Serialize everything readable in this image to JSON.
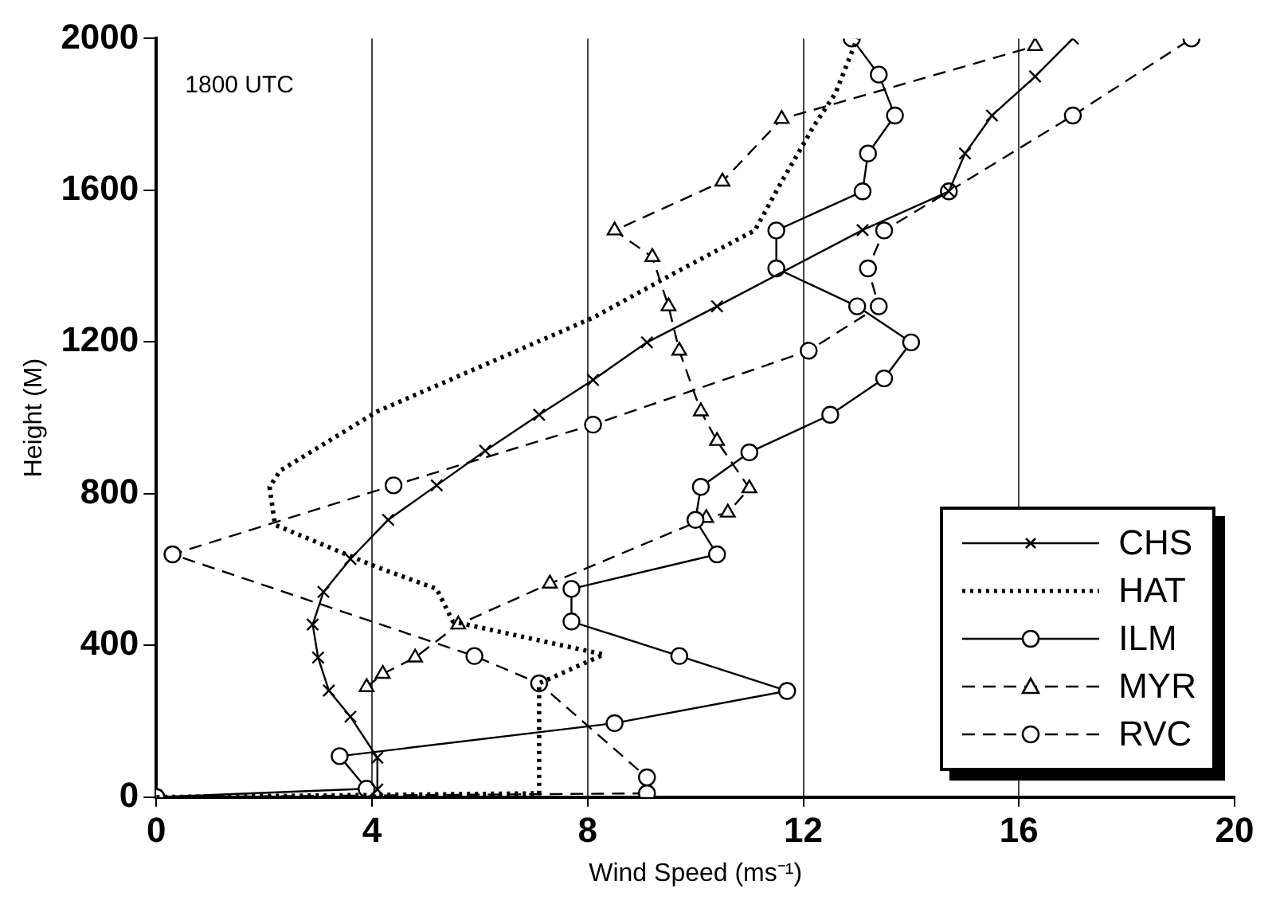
{
  "chart_data": {
    "type": "line",
    "xlabel": "Wind Speed (ms⁻¹)",
    "ylabel": "Height (M)",
    "annotations": [
      "1800 UTC"
    ],
    "xlim": [
      0,
      20
    ],
    "xticks": [
      0,
      4,
      8,
      12,
      16,
      20
    ],
    "ylim": [
      0,
      2000
    ],
    "yticks": [
      0,
      400,
      800,
      1200,
      1600,
      2000
    ],
    "grid": "x",
    "legend": "bottom right",
    "series": [
      {
        "name": "CHS",
        "color": "#000000",
        "marker": "cross",
        "line_style": "solid",
        "x": [
          4.1,
          4.1,
          3.6,
          3.2,
          3.0,
          2.9,
          3.1,
          3.6,
          4.3,
          5.2,
          6.1,
          7.1,
          8.1,
          9.1,
          10.4,
          13.1,
          14.7,
          15.0,
          15.5,
          16.3,
          17.0
        ],
        "values": [
          20,
          104,
          212,
          281,
          368,
          455,
          541,
          628,
          731,
          822,
          913,
          1008,
          1100,
          1199,
          1294,
          1495,
          1597,
          1697,
          1797,
          1900,
          2000
        ]
      },
      {
        "name": "HAT",
        "color": "#000000",
        "marker": "none",
        "line_style": "dotted",
        "x": [
          0,
          7.1,
          7.1,
          8.3,
          5.5,
          5.2,
          4.1,
          2.2,
          2.1,
          2.3,
          4.1,
          8.1,
          9.6,
          11.1,
          11.6,
          12.2,
          12.6,
          13.0
        ],
        "values": [
          0,
          10,
          300,
          376,
          463,
          549,
          606,
          718,
          818,
          861,
          1017,
          1264,
          1381,
          1494,
          1623,
          1770,
          1857,
          2000
        ]
      },
      {
        "name": "ILM",
        "color": "#000000",
        "marker": "circle",
        "line_style": "solid",
        "x": [
          0,
          3.9,
          3.4,
          8.5,
          11.7,
          9.7,
          7.7,
          7.7,
          10.4,
          10.0,
          10.1,
          11.0,
          12.5,
          13.5,
          14.0,
          13.0,
          11.5,
          11.5,
          13.1,
          13.2,
          13.7,
          13.4,
          12.9
        ],
        "values": [
          0,
          22,
          108,
          195,
          280,
          372,
          463,
          549,
          640,
          731,
          818,
          909,
          1008,
          1104,
          1199,
          1294,
          1394,
          1494,
          1597,
          1697,
          1797,
          1905,
          2000
        ]
      },
      {
        "name": "MYR",
        "color": "#000000",
        "marker": "triangle",
        "line_style": "dashed",
        "x": [
          3.9,
          4.2,
          4.8,
          5.6,
          7.3,
          10.2,
          10.6,
          11.0,
          10.4,
          10.1,
          9.7,
          9.5,
          9.2,
          8.5,
          10.5,
          11.6,
          16.3
        ],
        "values": [
          290,
          325,
          368,
          455,
          563,
          736,
          750,
          814,
          939,
          1017,
          1177,
          1294,
          1424,
          1494,
          1623,
          1788,
          1980
        ]
      },
      {
        "name": "RVC",
        "color": "#000000",
        "marker": "circle",
        "line_style": "dashed",
        "x": [
          0,
          9.1,
          9.1,
          7.1,
          5.9,
          0.3,
          4.4,
          8.1,
          12.1,
          13.4,
          13.2,
          13.5,
          14.7,
          17.0,
          19.2
        ],
        "values": [
          0,
          10,
          52,
          300,
          372,
          640,
          822,
          982,
          1177,
          1294,
          1394,
          1494,
          1597,
          1797,
          2000
        ]
      }
    ]
  }
}
